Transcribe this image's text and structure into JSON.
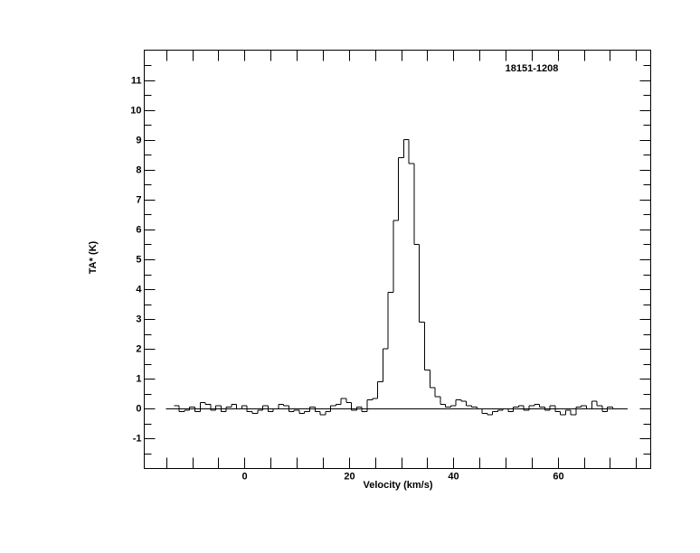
{
  "chart_data": {
    "type": "step",
    "title": "18151-1208",
    "xlabel": "Velocity (km/s)",
    "ylabel": "TA* (K)",
    "color": "#000000",
    "xlim": [
      -19.2,
      77.8
    ],
    "ylim": [
      -2,
      12
    ],
    "xticks": [
      0,
      20,
      40,
      60
    ],
    "yticks": [
      -1,
      0,
      1,
      2,
      3,
      4,
      5,
      6,
      7,
      8,
      9,
      10,
      11
    ],
    "xminorticks": [
      -15,
      -10,
      -5,
      5,
      10,
      15,
      25,
      30,
      35,
      45,
      50,
      55,
      65,
      70,
      75
    ],
    "yminorticks": [
      -1.5,
      -0.5,
      0.5,
      1.5,
      2.5,
      3.5,
      4.5,
      5.5,
      6.5,
      7.5,
      8.5,
      9.5,
      10.5,
      11.5
    ],
    "x": [
      -13,
      -12,
      -11,
      -10,
      -9,
      -8,
      -7,
      -6,
      -5,
      -4,
      -3,
      -2,
      -1,
      0,
      1,
      2,
      3,
      4,
      5,
      6,
      7,
      8,
      9,
      10,
      11,
      12,
      13,
      14,
      15,
      16,
      17,
      18,
      19,
      20,
      21,
      22,
      23,
      24,
      25,
      26,
      27,
      28,
      29,
      30,
      31,
      32,
      33,
      34,
      35,
      36,
      37,
      38,
      39,
      40,
      41,
      42,
      43,
      44,
      45,
      46,
      47,
      48,
      49,
      50,
      51,
      52,
      53,
      54,
      55,
      56,
      57,
      58,
      59,
      60,
      61,
      62,
      63,
      64,
      65,
      66,
      67,
      68,
      69,
      70,
      71
    ],
    "values": [
      0.1,
      -0.1,
      -0.05,
      0.05,
      -0.1,
      0.2,
      0.15,
      -0.05,
      0.1,
      -0.1,
      0.05,
      0.15,
      0.0,
      0.1,
      -0.1,
      -0.15,
      -0.05,
      0.1,
      -0.1,
      0.0,
      0.15,
      0.1,
      -0.1,
      -0.05,
      -0.15,
      -0.1,
      0.05,
      -0.1,
      -0.2,
      -0.1,
      0.1,
      0.15,
      0.35,
      0.2,
      -0.05,
      0.05,
      -0.1,
      0.3,
      0.35,
      0.9,
      2.0,
      3.9,
      6.3,
      8.4,
      9.0,
      8.2,
      5.5,
      2.9,
      1.3,
      0.7,
      0.4,
      0.15,
      0.05,
      0.1,
      0.3,
      0.25,
      0.1,
      0.05,
      0.0,
      -0.15,
      -0.2,
      -0.1,
      -0.05,
      0.0,
      -0.1,
      0.05,
      0.1,
      -0.05,
      0.1,
      0.15,
      0.05,
      -0.05,
      0.1,
      -0.1,
      -0.2,
      -0.05,
      -0.2,
      0.05,
      0.1,
      0.0,
      0.25,
      0.1,
      -0.1,
      0.05,
      0.0
    ]
  }
}
